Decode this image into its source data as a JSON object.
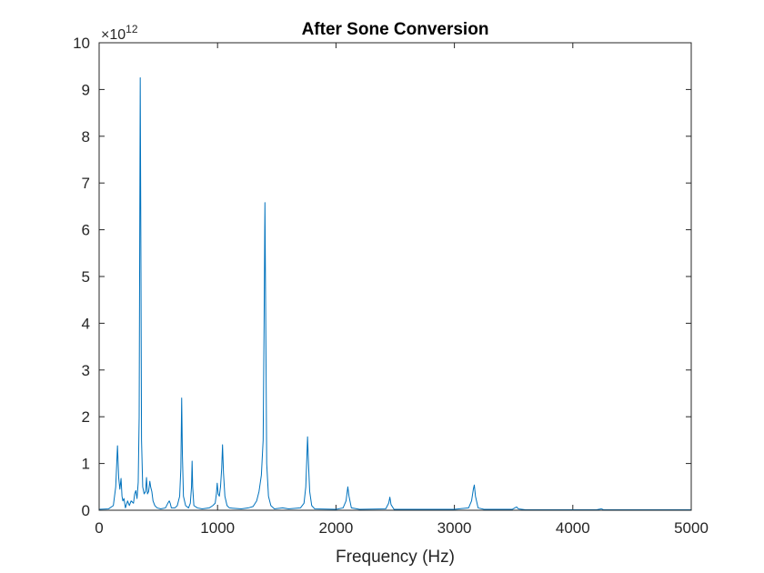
{
  "chart_data": {
    "type": "line",
    "title": "After Sone Conversion",
    "xlabel": "Frequency (Hz)",
    "ylabel": "",
    "xlim": [
      0,
      5000
    ],
    "ylim": [
      0,
      10
    ],
    "y_exponent": {
      "base": "×10",
      "power": "12"
    },
    "x_ticks": [
      "0",
      "1000",
      "2000",
      "3000",
      "4000",
      "5000"
    ],
    "y_ticks": [
      "0",
      "1",
      "2",
      "3",
      "4",
      "5",
      "6",
      "7",
      "8",
      "9",
      "10"
    ],
    "grid": false,
    "legend": "none",
    "colors": {
      "line": "#0072BD",
      "axes": "#262626"
    },
    "series": [
      {
        "points": [
          [
            0,
            0.02
          ],
          [
            80,
            0.03
          ],
          [
            120,
            0.1
          ],
          [
            140,
            0.5
          ],
          [
            155,
            1.38
          ],
          [
            165,
            0.7
          ],
          [
            175,
            0.45
          ],
          [
            185,
            0.68
          ],
          [
            193,
            0.3
          ],
          [
            200,
            0.2
          ],
          [
            210,
            0.25
          ],
          [
            222,
            0.05
          ],
          [
            240,
            0.2
          ],
          [
            255,
            0.1
          ],
          [
            270,
            0.2
          ],
          [
            290,
            0.15
          ],
          [
            300,
            0.35
          ],
          [
            310,
            0.42
          ],
          [
            320,
            0.25
          ],
          [
            330,
            0.6
          ],
          [
            338,
            2.0
          ],
          [
            343,
            6.0
          ],
          [
            347,
            9.25
          ],
          [
            352,
            6.0
          ],
          [
            358,
            1.5
          ],
          [
            368,
            0.5
          ],
          [
            380,
            0.35
          ],
          [
            392,
            0.4
          ],
          [
            400,
            0.7
          ],
          [
            408,
            0.35
          ],
          [
            418,
            0.4
          ],
          [
            428,
            0.62
          ],
          [
            435,
            0.5
          ],
          [
            445,
            0.4
          ],
          [
            455,
            0.2
          ],
          [
            470,
            0.1
          ],
          [
            490,
            0.05
          ],
          [
            520,
            0.03
          ],
          [
            560,
            0.05
          ],
          [
            580,
            0.15
          ],
          [
            592,
            0.2
          ],
          [
            600,
            0.15
          ],
          [
            610,
            0.05
          ],
          [
            640,
            0.05
          ],
          [
            660,
            0.1
          ],
          [
            680,
            0.3
          ],
          [
            690,
            0.9
          ],
          [
            697,
            2.4
          ],
          [
            703,
            1.2
          ],
          [
            712,
            0.3
          ],
          [
            730,
            0.1
          ],
          [
            755,
            0.05
          ],
          [
            770,
            0.15
          ],
          [
            780,
            0.5
          ],
          [
            785,
            1.05
          ],
          [
            790,
            0.5
          ],
          [
            800,
            0.1
          ],
          [
            830,
            0.05
          ],
          [
            870,
            0.03
          ],
          [
            930,
            0.05
          ],
          [
            960,
            0.1
          ],
          [
            980,
            0.15
          ],
          [
            990,
            0.35
          ],
          [
            997,
            0.58
          ],
          [
            1005,
            0.35
          ],
          [
            1015,
            0.3
          ],
          [
            1025,
            0.5
          ],
          [
            1035,
            0.9
          ],
          [
            1042,
            1.4
          ],
          [
            1050,
            0.8
          ],
          [
            1062,
            0.3
          ],
          [
            1080,
            0.1
          ],
          [
            1100,
            0.05
          ],
          [
            1200,
            0.03
          ],
          [
            1260,
            0.05
          ],
          [
            1300,
            0.08
          ],
          [
            1330,
            0.2
          ],
          [
            1350,
            0.4
          ],
          [
            1370,
            0.75
          ],
          [
            1385,
            1.5
          ],
          [
            1393,
            4.0
          ],
          [
            1400,
            6.58
          ],
          [
            1407,
            4.0
          ],
          [
            1415,
            1.0
          ],
          [
            1430,
            0.3
          ],
          [
            1450,
            0.1
          ],
          [
            1480,
            0.03
          ],
          [
            1550,
            0.05
          ],
          [
            1600,
            0.03
          ],
          [
            1700,
            0.05
          ],
          [
            1730,
            0.15
          ],
          [
            1745,
            0.5
          ],
          [
            1755,
            1.2
          ],
          [
            1760,
            1.57
          ],
          [
            1768,
            1.0
          ],
          [
            1778,
            0.4
          ],
          [
            1795,
            0.1
          ],
          [
            1820,
            0.03
          ],
          [
            2000,
            0.02
          ],
          [
            2060,
            0.05
          ],
          [
            2085,
            0.2
          ],
          [
            2100,
            0.5
          ],
          [
            2110,
            0.3
          ],
          [
            2130,
            0.05
          ],
          [
            2200,
            0.02
          ],
          [
            2420,
            0.03
          ],
          [
            2445,
            0.15
          ],
          [
            2455,
            0.28
          ],
          [
            2465,
            0.12
          ],
          [
            2490,
            0.02
          ],
          [
            3000,
            0.02
          ],
          [
            3120,
            0.05
          ],
          [
            3145,
            0.2
          ],
          [
            3160,
            0.45
          ],
          [
            3168,
            0.54
          ],
          [
            3178,
            0.3
          ],
          [
            3200,
            0.05
          ],
          [
            3250,
            0.02
          ],
          [
            3490,
            0.02
          ],
          [
            3510,
            0.05
          ],
          [
            3525,
            0.07
          ],
          [
            3540,
            0.03
          ],
          [
            3600,
            0.01
          ],
          [
            4200,
            0.01
          ],
          [
            4240,
            0.03
          ],
          [
            4260,
            0.01
          ],
          [
            5000,
            0.01
          ]
        ]
      }
    ]
  }
}
